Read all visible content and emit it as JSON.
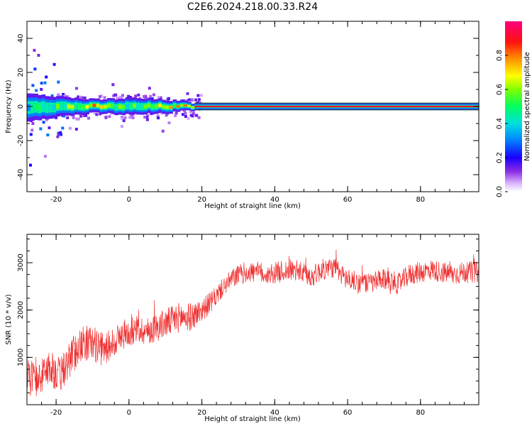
{
  "title": "C2E6.2024.218.00.33.R24",
  "colors": {
    "snr_line": "#f03030",
    "spectral_core": "#d03020",
    "background": "#ffffff"
  },
  "colorbar": {
    "label": "Normalized spectral amplitude",
    "ticks": [
      "0.0",
      "0.2",
      "0.4",
      "0.6",
      "0.8"
    ],
    "range": [
      0,
      1
    ],
    "colormap": "rainbow-white-to-magenta"
  },
  "chart_data": [
    {
      "type": "heatmap",
      "title": "",
      "xlabel": "Height of straight line (km)",
      "ylabel": "Frequency (Hz)",
      "xlim": [
        -28,
        96
      ],
      "ylim": [
        -50,
        50
      ],
      "xticks": [
        "-20",
        "0",
        "20",
        "40",
        "60",
        "80"
      ],
      "yticks": [
        "40",
        "20",
        "0",
        "-20",
        "-40"
      ],
      "ridge": {
        "frequency_hz": 0,
        "description_points": [
          {
            "x": -27,
            "width_hz": 8,
            "peak": 0.5
          },
          {
            "x": -20,
            "width_hz": 6,
            "peak": 0.6
          },
          {
            "x": -10,
            "width_hz": 4,
            "peak": 0.85
          },
          {
            "x": 0,
            "width_hz": 5,
            "peak": 0.6
          },
          {
            "x": 10,
            "width_hz": 4,
            "peak": 0.8
          },
          {
            "x": 18,
            "width_hz": 2,
            "peak": 0.9
          },
          {
            "x": 95,
            "width_hz": 2,
            "peak": 0.9
          }
        ]
      }
    },
    {
      "type": "line",
      "title": "",
      "xlabel": "Height of straight line (km)",
      "ylabel": "SNR (10 * v/v)",
      "xlim": [
        -28,
        96
      ],
      "ylim": [
        0,
        3600
      ],
      "xticks": [
        "-20",
        "0",
        "20",
        "40",
        "60",
        "80"
      ],
      "yticks": [
        "3000",
        "2000",
        "1000"
      ],
      "series": [
        {
          "x": [
            -28,
            -25,
            -22,
            -19,
            -16,
            -13,
            -10,
            -7,
            -4,
            -1,
            2,
            5,
            8,
            11,
            14,
            17,
            20,
            23,
            26,
            29,
            32,
            35,
            38,
            41,
            44,
            47,
            50,
            53,
            56,
            59,
            62,
            65,
            68,
            71,
            74,
            77,
            80,
            83,
            86,
            89,
            92,
            95
          ],
          "values": [
            700,
            500,
            800,
            600,
            1000,
            1300,
            1300,
            1150,
            1350,
            1500,
            1600,
            1550,
            1650,
            1750,
            1850,
            1850,
            2000,
            2200,
            2500,
            2700,
            2800,
            2800,
            2750,
            2800,
            2850,
            2800,
            2700,
            2850,
            2900,
            2700,
            2600,
            2550,
            2600,
            2650,
            2550,
            2750,
            2800,
            2850,
            2800,
            2750,
            2800,
            2800
          ],
          "noise": [
            350,
            350,
            380,
            400,
            400,
            380,
            380,
            350,
            330,
            320,
            300,
            300,
            300,
            320,
            320,
            300,
            250,
            220,
            200,
            220,
            230,
            230,
            230,
            230,
            230,
            230,
            230,
            230,
            230,
            230,
            230,
            230,
            230,
            230,
            230,
            230,
            230,
            230,
            230,
            230,
            230,
            230
          ]
        }
      ]
    }
  ]
}
